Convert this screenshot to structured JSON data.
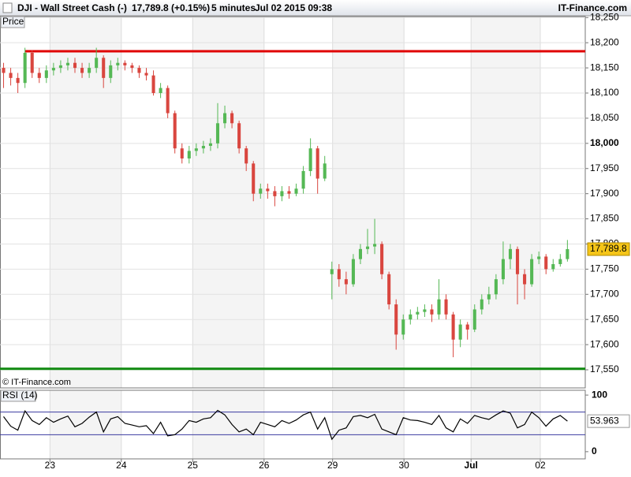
{
  "header": {
    "symbol": "DJI - Wall Street Cash (-)",
    "quote": "17,789.8 (+0.15%)",
    "interval": "5 minutes",
    "datetime": "Jul 02 2015 09:38",
    "brand": "IT-Finance.com",
    "copyright": "© IT-Finance.com"
  },
  "chart_data": [
    {
      "type": "candlestick",
      "label": "Price",
      "open": [
        18150,
        18140,
        18130,
        18120,
        18180,
        18140,
        18130,
        18145,
        18150,
        18155,
        18160,
        18150,
        18140,
        18150,
        18170,
        18130,
        18155,
        18160,
        18155,
        18150,
        18140,
        18135,
        18100,
        18110,
        18060,
        17990,
        17970,
        17985,
        17990,
        17995,
        18000,
        18040,
        18060,
        18040,
        17990,
        17960,
        17900,
        17910,
        17905,
        17895,
        17905,
        17900,
        17910,
        17945,
        17990,
        17930,
        17740,
        17750,
        17730,
        17720,
        17770,
        17790,
        17795,
        17800,
        17740,
        17680,
        17620,
        17650,
        17660,
        17665,
        17670,
        17660,
        17690,
        17660,
        17610,
        17640,
        17630,
        17670,
        17690,
        17700,
        17730,
        17770,
        17790,
        17740,
        17720,
        17770,
        17775,
        17750,
        17760,
        17770
      ],
      "high": [
        18160,
        18150,
        18140,
        18190,
        18185,
        18150,
        18155,
        18160,
        18165,
        18170,
        18170,
        18160,
        18160,
        18190,
        18175,
        18165,
        18170,
        18165,
        18160,
        18155,
        18150,
        18145,
        18120,
        18115,
        18065,
        18000,
        17995,
        18000,
        18005,
        18010,
        18080,
        18075,
        18065,
        18045,
        17995,
        17965,
        17920,
        17920,
        17915,
        17915,
        17915,
        17920,
        17955,
        18010,
        17995,
        17975,
        17765,
        17760,
        17745,
        17780,
        17800,
        17830,
        17850,
        17805,
        17745,
        17690,
        17660,
        17670,
        17675,
        17680,
        17680,
        17730,
        17700,
        17665,
        17650,
        17645,
        17680,
        17700,
        17715,
        17740,
        17805,
        17800,
        17795,
        17750,
        17780,
        17785,
        17780,
        17770,
        17780,
        17808
      ],
      "low": [
        18110,
        18115,
        18100,
        18110,
        18130,
        18120,
        18120,
        18135,
        18140,
        18145,
        18140,
        18130,
        18130,
        18140,
        18110,
        18120,
        18145,
        18145,
        18140,
        18130,
        18125,
        18095,
        18090,
        18050,
        17980,
        17960,
        17960,
        17975,
        17980,
        17985,
        17990,
        18030,
        18030,
        17980,
        17945,
        17885,
        17890,
        17890,
        17875,
        17885,
        17890,
        17895,
        17900,
        17935,
        17900,
        17925,
        17690,
        17715,
        17700,
        17715,
        17760,
        17780,
        17780,
        17730,
        17670,
        17590,
        17610,
        17640,
        17650,
        17655,
        17645,
        17650,
        17650,
        17575,
        17595,
        17610,
        17625,
        17660,
        17680,
        17690,
        17720,
        17750,
        17680,
        17690,
        17715,
        17760,
        17740,
        17745,
        17755,
        17765
      ],
      "close": [
        18140,
        18130,
        18120,
        18180,
        18140,
        18130,
        18145,
        18150,
        18155,
        18160,
        18150,
        18140,
        18150,
        18170,
        18130,
        18155,
        18160,
        18155,
        18150,
        18140,
        18135,
        18100,
        18110,
        18060,
        17990,
        17970,
        17985,
        17990,
        17995,
        18000,
        18040,
        18060,
        18040,
        17990,
        17960,
        17900,
        17910,
        17905,
        17895,
        17905,
        17900,
        17910,
        17945,
        17990,
        17930,
        17960,
        17750,
        17730,
        17720,
        17770,
        17790,
        17795,
        17800,
        17740,
        17680,
        17620,
        17650,
        17660,
        17665,
        17670,
        17660,
        17690,
        17660,
        17610,
        17640,
        17630,
        17670,
        17690,
        17700,
        17730,
        17770,
        17790,
        17740,
        17720,
        17770,
        17775,
        17750,
        17760,
        17770,
        17789.8
      ],
      "up_color": "#55b855",
      "down_color": "#d9463f",
      "xlim": [
        0,
        82
      ],
      "xticks": [
        {
          "value": 7,
          "label": "23"
        },
        {
          "value": 17,
          "label": "24"
        },
        {
          "value": 27,
          "label": "25"
        },
        {
          "value": 37,
          "label": "26"
        },
        {
          "value": 46.6,
          "label": "29"
        },
        {
          "value": 56.6,
          "label": "30"
        },
        {
          "value": 66,
          "label": "Jul"
        },
        {
          "value": 75.7,
          "label": "02"
        }
      ],
      "ylim": [
        17514,
        18252
      ],
      "yticks": [
        {
          "value": 17550,
          "label": "17,550"
        },
        {
          "value": 17600,
          "label": "17,600"
        },
        {
          "value": 17650,
          "label": "17,650"
        },
        {
          "value": 17700,
          "label": "17,700"
        },
        {
          "value": 17750,
          "label": "17,750"
        },
        {
          "value": 17800,
          "label": "17,800"
        },
        {
          "value": 17850,
          "label": "17,850"
        },
        {
          "value": 17900,
          "label": "17,900"
        },
        {
          "value": 17950,
          "label": "17,950"
        },
        {
          "value": 18000,
          "label": "18,000"
        },
        {
          "value": 18050,
          "label": "18,050"
        },
        {
          "value": 18100,
          "label": "18,100"
        },
        {
          "value": 18150,
          "label": "18,150"
        },
        {
          "value": 18200,
          "label": "18,200"
        },
        {
          "value": 18250,
          "label": "18,250"
        }
      ],
      "hlines": [
        {
          "value": 18183,
          "color": "#e00000"
        },
        {
          "value": 17552,
          "color": "#108a10"
        }
      ],
      "price_marker": {
        "value": 17789.8,
        "label": "17,789.8"
      },
      "grid": true
    },
    {
      "type": "line",
      "label": "RSI (14)",
      "color": "#000000",
      "values": [
        62,
        45,
        38,
        72,
        55,
        48,
        60,
        52,
        58,
        63,
        44,
        50,
        61,
        70,
        35,
        58,
        62,
        50,
        47,
        44,
        46,
        32,
        52,
        28,
        30,
        40,
        55,
        52,
        58,
        60,
        73,
        65,
        48,
        35,
        40,
        30,
        52,
        48,
        44,
        55,
        50,
        56,
        65,
        70,
        40,
        60,
        22,
        38,
        42,
        62,
        64,
        60,
        66,
        40,
        35,
        30,
        60,
        56,
        55,
        52,
        48,
        64,
        42,
        35,
        58,
        50,
        64,
        60,
        57,
        65,
        72,
        68,
        42,
        48,
        70,
        60,
        45,
        58,
        64,
        53.963
      ],
      "levels": [
        30,
        70
      ],
      "ylim": [
        -12.7,
        108.5
      ],
      "yticks": [
        0,
        100
      ]
    }
  ]
}
